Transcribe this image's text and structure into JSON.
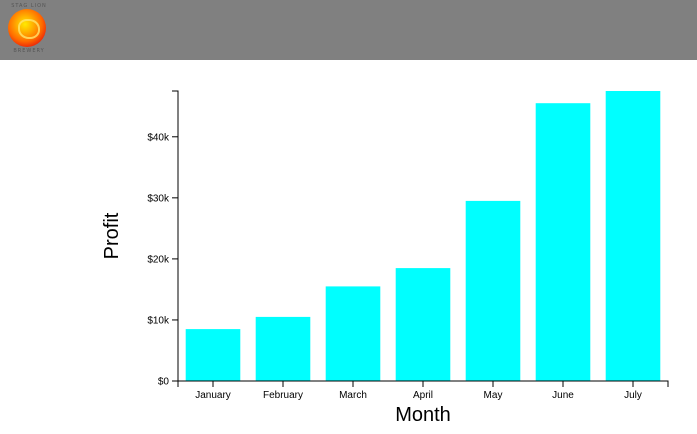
{
  "header": {
    "logo": {
      "top_text": "STAG LION",
      "bottom_text": "BREWERY"
    }
  },
  "colors": {
    "header_bg": "#808080",
    "bar": "#00ffff",
    "axis": "#000000"
  },
  "chart_data": {
    "type": "bar",
    "categories": [
      "January",
      "February",
      "March",
      "April",
      "May",
      "June",
      "July"
    ],
    "values": [
      8500,
      10500,
      15500,
      18500,
      29500,
      45500,
      47500
    ],
    "xlabel": "Month",
    "ylabel": "Profit",
    "ylim": [
      0,
      47500
    ],
    "yticks": [
      0,
      10000,
      20000,
      30000,
      40000
    ],
    "ytick_labels": [
      "$0",
      "$10k",
      "$20k",
      "$30k",
      "$40k"
    ],
    "grid": false,
    "legend": "none"
  }
}
